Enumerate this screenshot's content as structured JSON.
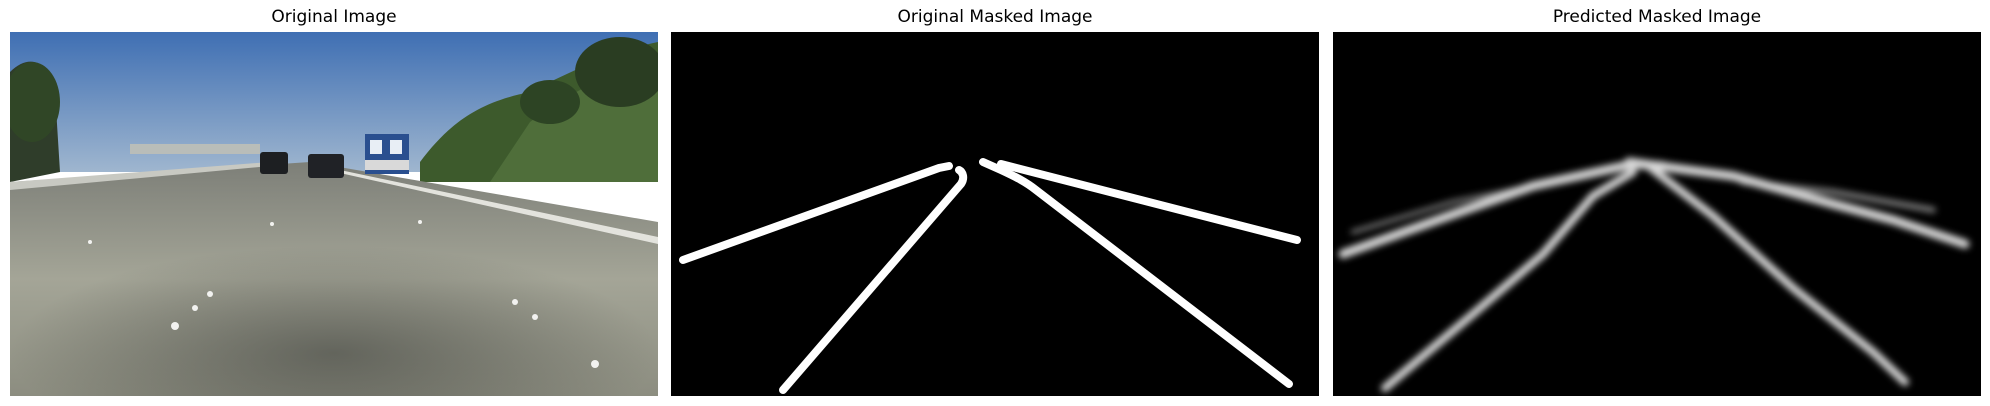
{
  "panels": [
    {
      "title": "Original Image"
    },
    {
      "title": "Original Masked Image"
    },
    {
      "title": "Predicted Masked Image"
    }
  ],
  "colors": {
    "sky": "#4a79b8",
    "road": "#9a9b8f",
    "mask_background": "#000000",
    "lane_line": "#ffffff"
  }
}
